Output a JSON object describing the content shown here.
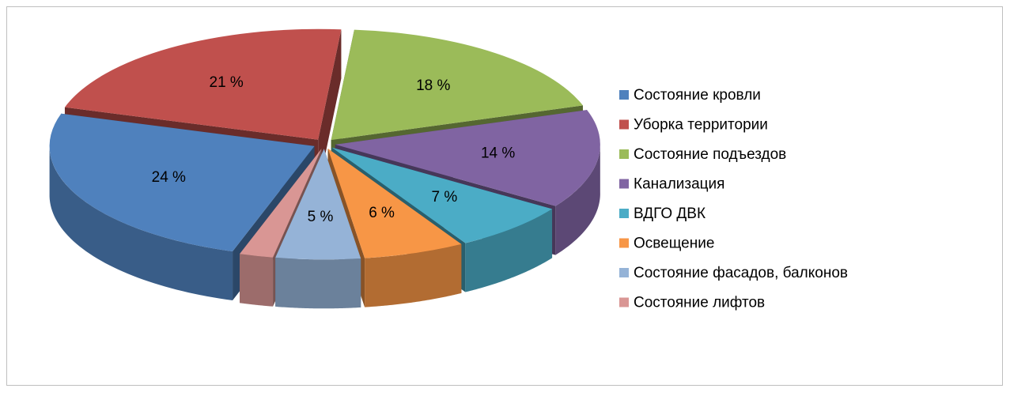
{
  "chart_data": {
    "type": "pie",
    "categories": [
      "Состояние кровли",
      "Уборка территории",
      "Состояние подъездов",
      "Канализация",
      "ВДГО ДВК",
      "Освещение",
      "Состояние фасадов, балконов",
      "Состояние лифтов"
    ],
    "values": [
      24,
      21,
      18,
      14,
      7,
      6,
      5,
      2
    ],
    "value_labels": [
      "24 %",
      "21 %",
      "18 %",
      "14 %",
      "7 %",
      "6 %",
      "5 %",
      null
    ],
    "colors": [
      "#4f81bd",
      "#c0504d",
      "#9bbb59",
      "#8064a2",
      "#4bacc6",
      "#f79646",
      "#95b3d7",
      "#d99694"
    ],
    "legend": "right"
  }
}
